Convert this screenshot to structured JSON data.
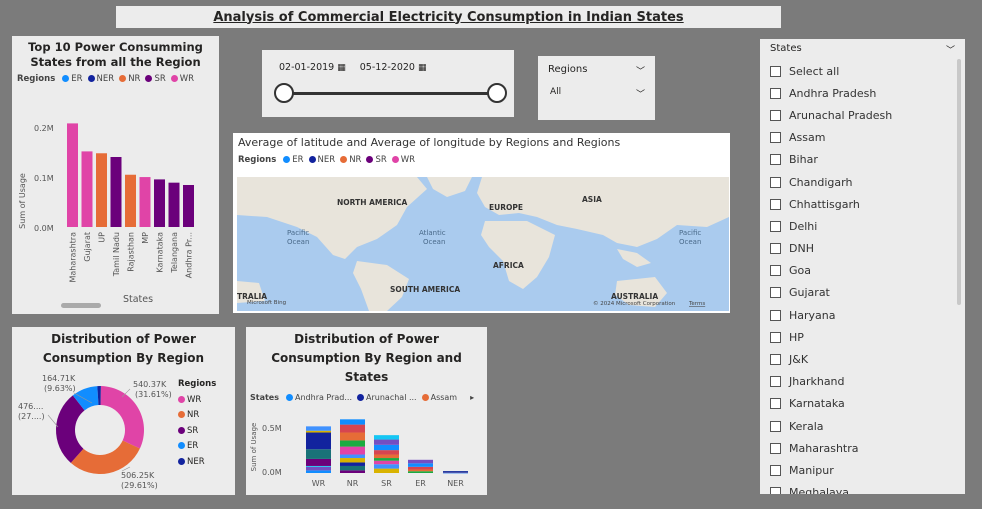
{
  "page_title": "Analysis of Commercial Electricity Consumption in Indian States",
  "colors": {
    "ER": "#118dff",
    "NER": "#12239e",
    "NR": "#e66c37",
    "SR": "#6b007b",
    "WR": "#e044a7"
  },
  "bar_card": {
    "title": "Top 10 Power Consumming States from all the Region",
    "legend_title": "Regions",
    "legend": [
      "ER",
      "NER",
      "NR",
      "SR",
      "WR"
    ],
    "ylabel": "Sum of Usage",
    "xlabel": "States",
    "yticks": [
      "0.2M",
      "0.1M",
      "0.0M"
    ]
  },
  "date_slicer": {
    "start": "02-01-2019",
    "end": "05-12-2020",
    "calendar_icon": "calendar-icon"
  },
  "region_slicer": {
    "title": "Regions",
    "value": "All"
  },
  "map_card": {
    "title": "Average of latitude and Average of longitude by Regions and Regions",
    "legend_title": "Regions",
    "legend": [
      "ER",
      "NER",
      "NR",
      "SR",
      "WR"
    ],
    "labels": {
      "north_america": "NORTH AMERICA",
      "europe": "EUROPE",
      "asia": "ASIA",
      "africa": "AFRICA",
      "south_america": "SOUTH AMERICA",
      "australia": "AUSTRALIA",
      "tralia": "TRALIA",
      "pacific_left": "Pacific\nOcean",
      "atlantic": "Atlantic\nOcean",
      "pacific_right": "Pacific\nOcean",
      "bing": "Microsoft Bing",
      "copyright": "© 2024 Microsoft Corporation",
      "terms": "Terms"
    }
  },
  "states_slicer": {
    "title": "States",
    "items": [
      "Select all",
      "Andhra Pradesh",
      "Arunachal Pradesh",
      "Assam",
      "Bihar",
      "Chandigarh",
      "Chhattisgarh",
      "Delhi",
      "DNH",
      "Goa",
      "Gujarat",
      "Haryana",
      "HP",
      "J&K",
      "Jharkhand",
      "Karnataka",
      "Kerala",
      "Maharashtra",
      "Manipur",
      "Meghalaya"
    ]
  },
  "donut_card": {
    "title": "Distribution of Power Consumption By Region",
    "legend_title": "Regions",
    "legend": [
      "WR",
      "NR",
      "SR",
      "ER",
      "NER"
    ],
    "labels": {
      "wr": "540.37K\n(31.61%)",
      "nr": "506.25K\n(29.61%)",
      "sr": "476....\n(27....)",
      "er": "164.71K\n(9.63%)"
    }
  },
  "stacked_card": {
    "title": "Distribution of Power Consumption By Region and States",
    "legend_title": "States",
    "legend": [
      "Andhra Prad...",
      "Arunachal ...",
      "Assam"
    ],
    "ylabel": "Sum of Usage",
    "yticks": [
      "0.5M",
      "0.0M"
    ]
  },
  "chart_data": [
    {
      "type": "bar",
      "title": "Top 10 Power Consumming States from all the Region",
      "xlabel": "States",
      "ylabel": "Sum of Usage",
      "categories": [
        "Maharashtra",
        "Gujarat",
        "UP",
        "Tamil Nadu",
        "Rajasthan",
        "MP",
        "Karnataka",
        "Telangana",
        "Andhra Pr..."
      ],
      "values": [
        0.222,
        0.162,
        0.158,
        0.15,
        0.112,
        0.107,
        0.102,
        0.095,
        0.09
      ],
      "regions": [
        "WR",
        "WR",
        "NR",
        "SR",
        "NR",
        "WR",
        "SR",
        "SR",
        "SR"
      ],
      "ylim": [
        0,
        0.24
      ],
      "grid": false
    },
    {
      "type": "pie",
      "title": "Distribution of Power Consumption By Region",
      "categories": [
        "WR",
        "NR",
        "SR",
        "ER",
        "NER"
      ],
      "values": [
        540.37,
        506.25,
        476.0,
        164.71,
        22.0
      ],
      "percent": [
        31.61,
        29.61,
        27.8,
        9.63,
        1.3
      ]
    },
    {
      "type": "bar",
      "title": "Distribution of Power Consumption By Region and States",
      "ylabel": "Sum of Usage",
      "categories": [
        "WR",
        "NR",
        "SR",
        "ER",
        "NER"
      ],
      "ylim": [
        0,
        0.6
      ],
      "stacks": [
        [
          0.03,
          0.04,
          0.01,
          0.08,
          0.11,
          0.19,
          0.02,
          0.05
        ],
        [
          0.03,
          0.05,
          0.04,
          0.05,
          0.04,
          0.09,
          0.07,
          0.09,
          0.09,
          0.06
        ],
        [
          0.05,
          0.05,
          0.04,
          0.03,
          0.04,
          0.05,
          0.06,
          0.06,
          0.05
        ],
        [
          0.02,
          0.02,
          0.03,
          0.04,
          0.04
        ],
        [
          0.005,
          0.003,
          0.004,
          0.003,
          0.004,
          0.002
        ]
      ]
    }
  ]
}
